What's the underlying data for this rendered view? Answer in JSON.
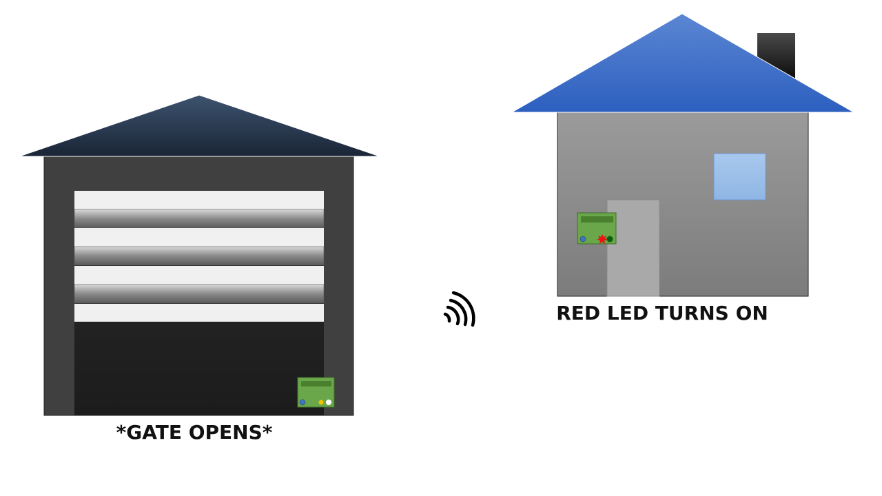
{
  "captions": {
    "garage": "*GATE OPENS*",
    "house": "RED LED TURNS ON"
  },
  "colors": {
    "garage_roof": "#1e2b3d",
    "garage_wall": "#404040",
    "garage_interior": "#232323",
    "door_panel_light": "#f0f0f0",
    "house_roof": "#3a6cc8",
    "house_wall": "#8e8e8e",
    "house_door": "#a9a9a9",
    "house_window": "#9dc1ea",
    "chimney": "#111111",
    "circuit_board": "#6aa64a",
    "board_display": "#4a7f2e",
    "led_blue": "#3f74c9",
    "led_yellow": "#f2c200",
    "led_white": "#ffffff",
    "led_red": "#ee1111",
    "led_green": "#0b5e10"
  },
  "icons": {
    "wireless": "wireless-signal-icon"
  }
}
